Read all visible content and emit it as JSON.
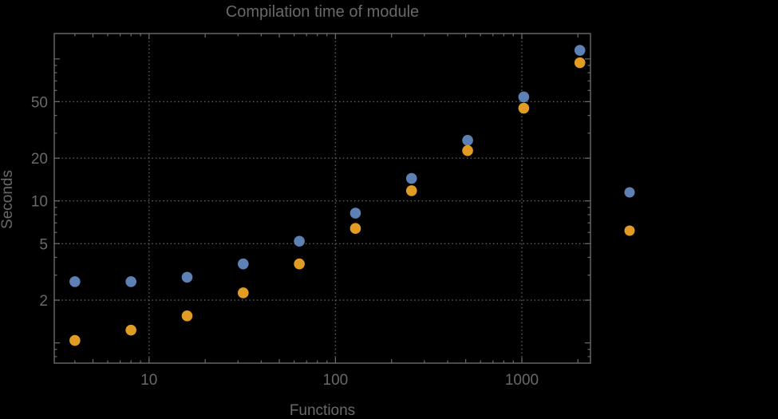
{
  "chart_data": {
    "type": "scatter",
    "title": "Compilation time of module",
    "xlabel": "Functions",
    "ylabel": "Seconds",
    "xscale": "log",
    "yscale": "log",
    "xlim": [
      3.1,
      2335
    ],
    "ylim": [
      0.72,
      151
    ],
    "grid": "dotted gridlines at labeled ticks only",
    "legend_position": "right-outside",
    "x": [
      4,
      8,
      16,
      32,
      64,
      128,
      256,
      512,
      1024,
      2048
    ],
    "series": [
      {
        "name": "series-blue",
        "color": "#5E81B5",
        "values": [
          2.7,
          2.7,
          2.9,
          3.6,
          5.2,
          8.2,
          14.4,
          26.7,
          54,
          115
        ]
      },
      {
        "name": "series-orange",
        "color": "#E19C24",
        "values": [
          1.04,
          1.23,
          1.55,
          2.25,
          3.6,
          6.4,
          11.8,
          22.6,
          45,
          94
        ]
      }
    ],
    "xticks": {
      "values": [
        10,
        100,
        1000
      ],
      "labels": [
        "10",
        "100",
        "1000"
      ]
    },
    "yticks": {
      "values": [
        2,
        5,
        10,
        20,
        50
      ],
      "labels": [
        "2",
        "5",
        "10",
        "20",
        "50"
      ],
      "unlabeled_major": [
        1,
        100
      ]
    },
    "legend": {
      "entries": [
        {
          "color": "#5E81B5",
          "label": ""
        },
        {
          "color": "#E19C24",
          "label": ""
        }
      ]
    },
    "colors": {
      "background": "#000000",
      "text": "#696969",
      "frame": "#6b6b6b",
      "grid": "#5f5f5f"
    }
  }
}
